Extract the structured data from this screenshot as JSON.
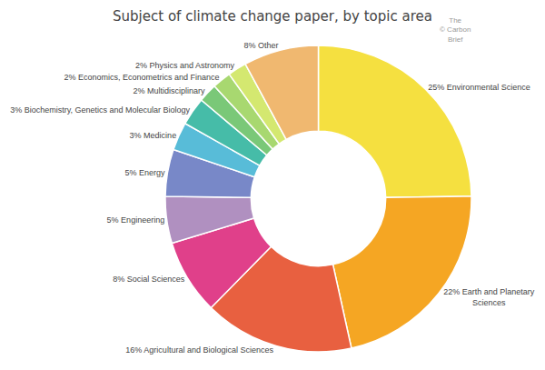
{
  "chart_data": {
    "type": "pie",
    "title": "Subject of climate change paper, by topic area",
    "annotations": [
      "The\n© Carbon\nBrief"
    ],
    "categories": [
      "25% Environmental Science",
      "22% Earth and Planetary\nSciences",
      "16% Agricultural and Biological Sciences",
      "8% Social Sciences",
      "5% Engineering",
      "5% Energy",
      "3% Medicine",
      "3% Biochemistry, Genetics and Molecular Biology",
      "2% Multidisciplinary",
      "2% Economics, Econometrics and Finance",
      "2% Physics and Astronomy",
      "8% Other"
    ],
    "values": [
      25,
      22,
      16,
      8,
      5,
      5,
      3,
      3,
      2,
      2,
      2,
      8
    ],
    "colors": [
      "#f5e040",
      "#f5a623",
      "#e86040",
      "#e0408a",
      "#b090c0",
      "#7888c8",
      "#58bcd8",
      "#46bca8",
      "#7ac878",
      "#a8d870",
      "#d4e870",
      "#f0b870"
    ]
  }
}
